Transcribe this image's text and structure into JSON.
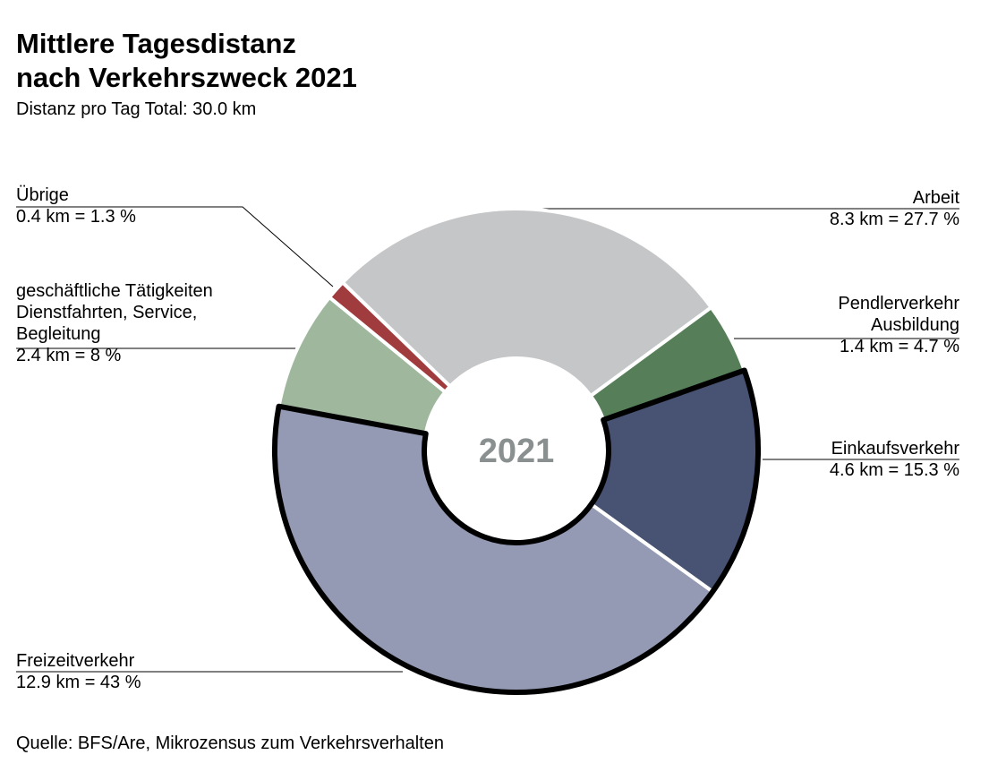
{
  "title_line1": "Mittlere Tagesdistanz",
  "title_line2": "nach Verkehrszweck 2021",
  "subtitle": "Distanz pro Tag Total: 30.0 km",
  "source": "Quelle: BFS/Are, Mikrozensus zum Verkehrsverhalten",
  "chart_data": {
    "type": "pie",
    "variant": "donut",
    "title": "Mittlere Tagesdistanz nach Verkehrszweck 2021",
    "subtitle": "Distanz pro Tag Total: 30.0 km",
    "center_label": "2021",
    "total_km": 30.0,
    "unit": "km",
    "slices": [
      {
        "key": "arbeit",
        "name": "Arbeit",
        "name_lines": [
          "Arbeit"
        ],
        "km": 8.3,
        "percent": 27.7,
        "value_label": "8.3 km = 27.7 %",
        "color": "#c5c6c8",
        "highlighted": false
      },
      {
        "key": "pendler",
        "name": "Pendlerverkehr Ausbildung",
        "name_lines": [
          "Pendlerverkehr",
          "Ausbildung"
        ],
        "km": 1.4,
        "percent": 4.7,
        "value_label": "1.4 km = 4.7 %",
        "color": "#567f59",
        "highlighted": false
      },
      {
        "key": "einkauf",
        "name": "Einkaufsverkehr",
        "name_lines": [
          "Einkaufsverkehr"
        ],
        "km": 4.6,
        "percent": 15.3,
        "value_label": "4.6 km = 15.3 %",
        "color": "#485373",
        "highlighted": true
      },
      {
        "key": "freizeit",
        "name": "Freizeitverkehr",
        "name_lines": [
          "Freizeitverkehr"
        ],
        "km": 12.9,
        "percent": 43,
        "value_label": "12.9 km = 43 %",
        "color": "#959ab4",
        "highlighted": true
      },
      {
        "key": "geschaeft",
        "name": "geschäftliche Tätigkeiten Dienstfahrten, Service, Begleitung",
        "name_lines": [
          "geschäftliche Tätigkeiten",
          "Dienstfahrten, Service,",
          "Begleitung"
        ],
        "km": 2.4,
        "percent": 8,
        "value_label": "2.4 km = 8 %",
        "color": "#9fb89d",
        "highlighted": false
      },
      {
        "key": "uebrige",
        "name": "Übrige",
        "name_lines": [
          "Übrige"
        ],
        "km": 0.4,
        "percent": 1.3,
        "value_label": "0.4 km = 1.3 %",
        "color": "#a13c3e",
        "highlighted": false
      }
    ]
  }
}
